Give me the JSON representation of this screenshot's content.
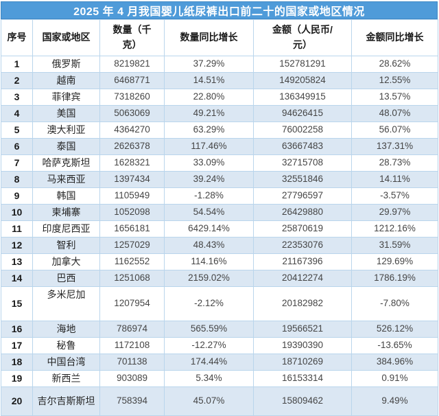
{
  "chart_data": {
    "type": "table",
    "title": "2025 年 4 月我国婴儿纸尿裤出口前二十的国家或地区情况",
    "columns": [
      "序号",
      "国家或地区",
      "数量（千克）",
      "数量同比增长",
      "金额（人民币/元）",
      "金额同比增长"
    ],
    "rows": [
      {
        "rank": 1,
        "country": "俄罗斯",
        "quantity_kg": 8219821,
        "quantity_yoy": "37.29%",
        "amount_cny": 152781291,
        "amount_yoy": "28.62%"
      },
      {
        "rank": 2,
        "country": "越南",
        "quantity_kg": 6468771,
        "quantity_yoy": "14.51%",
        "amount_cny": 149205824,
        "amount_yoy": "12.55%"
      },
      {
        "rank": 3,
        "country": "菲律宾",
        "quantity_kg": 7318260,
        "quantity_yoy": "22.80%",
        "amount_cny": 136349915,
        "amount_yoy": "13.57%"
      },
      {
        "rank": 4,
        "country": "美国",
        "quantity_kg": 5063069,
        "quantity_yoy": "49.21%",
        "amount_cny": 94626415,
        "amount_yoy": "48.07%"
      },
      {
        "rank": 5,
        "country": "澳大利亚",
        "quantity_kg": 4364270,
        "quantity_yoy": "63.29%",
        "amount_cny": 76002258,
        "amount_yoy": "56.07%"
      },
      {
        "rank": 6,
        "country": "泰国",
        "quantity_kg": 2626378,
        "quantity_yoy": "117.46%",
        "amount_cny": 63667483,
        "amount_yoy": "137.31%"
      },
      {
        "rank": 7,
        "country": "哈萨克斯坦",
        "quantity_kg": 1628321,
        "quantity_yoy": "33.09%",
        "amount_cny": 32715708,
        "amount_yoy": "28.73%"
      },
      {
        "rank": 8,
        "country": "马来西亚",
        "quantity_kg": 1397434,
        "quantity_yoy": "39.24%",
        "amount_cny": 32551846,
        "amount_yoy": "14.11%"
      },
      {
        "rank": 9,
        "country": "韩国",
        "quantity_kg": 1105949,
        "quantity_yoy": "-1.28%",
        "amount_cny": 27796597,
        "amount_yoy": "-3.57%"
      },
      {
        "rank": 10,
        "country": "柬埔寨",
        "quantity_kg": 1052098,
        "quantity_yoy": "54.54%",
        "amount_cny": 26429880,
        "amount_yoy": "29.97%"
      },
      {
        "rank": 11,
        "country": "印度尼西亚",
        "quantity_kg": 1656181,
        "quantity_yoy": "6429.14%",
        "amount_cny": 25870619,
        "amount_yoy": "1212.16%"
      },
      {
        "rank": 12,
        "country": "智利",
        "quantity_kg": 1257029,
        "quantity_yoy": "48.43%",
        "amount_cny": 22353076,
        "amount_yoy": "31.59%"
      },
      {
        "rank": 13,
        "country": "加拿大",
        "quantity_kg": 1162552,
        "quantity_yoy": "114.16%",
        "amount_cny": 21167396,
        "amount_yoy": "129.69%"
      },
      {
        "rank": 14,
        "country": "巴西",
        "quantity_kg": 1251068,
        "quantity_yoy": "2159.02%",
        "amount_cny": 20412274,
        "amount_yoy": "1786.19%"
      },
      {
        "rank": 15,
        "country": "多米尼加",
        "quantity_kg": 1207954,
        "quantity_yoy": "-2.12%",
        "amount_cny": 20182982,
        "amount_yoy": "-7.80%"
      },
      {
        "rank": 16,
        "country": "海地",
        "quantity_kg": 786974,
        "quantity_yoy": "565.59%",
        "amount_cny": 19566521,
        "amount_yoy": "526.12%"
      },
      {
        "rank": 17,
        "country": "秘鲁",
        "quantity_kg": 1172108,
        "quantity_yoy": "-12.27%",
        "amount_cny": 19390390,
        "amount_yoy": "-13.65%"
      },
      {
        "rank": 18,
        "country": "中国台湾",
        "quantity_kg": 701138,
        "quantity_yoy": "174.44%",
        "amount_cny": 18710269,
        "amount_yoy": "384.96%"
      },
      {
        "rank": 19,
        "country": "新西兰",
        "quantity_kg": 903089,
        "quantity_yoy": "5.34%",
        "amount_cny": 16153314,
        "amount_yoy": "0.91%"
      },
      {
        "rank": 20,
        "country": "吉尔吉斯斯坦",
        "quantity_kg": 758394,
        "quantity_yoy": "45.07%",
        "amount_cny": 15809462,
        "amount_yoy": "9.49%"
      }
    ]
  },
  "colors": {
    "title_bar_bg": "#4f9bd9",
    "title_bar_border": "#3c86c4",
    "title_text": "#ffffff",
    "banded_row_bg": "#dbe7f3",
    "grid_line": "#b9d5ec",
    "body_text": "#454545"
  }
}
